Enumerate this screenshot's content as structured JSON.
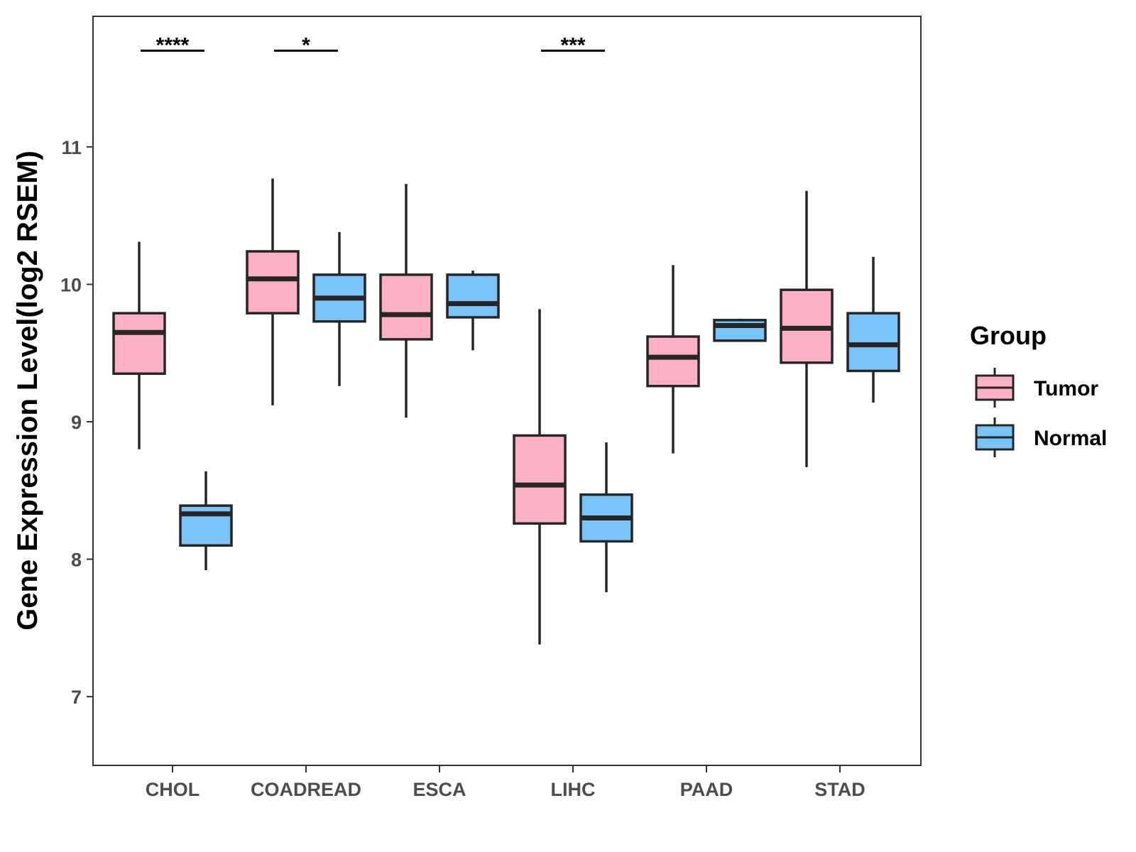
{
  "chart_data": {
    "type": "boxplot",
    "title": "",
    "xlabel": "",
    "ylabel": "Gene Expression Level(log2 RSEM)",
    "ylim": [
      6.5,
      11.95
    ],
    "yticks": [
      7,
      8,
      9,
      10,
      11
    ],
    "categories": [
      "CHOL",
      "COADREAD",
      "ESCA",
      "LIHC",
      "PAAD",
      "STAD"
    ],
    "legend": {
      "title": "Group",
      "position": "right",
      "entries": [
        "Tumor",
        "Normal"
      ]
    },
    "series": [
      {
        "name": "Tumor",
        "color": "#FBB1C3",
        "boxes": [
          {
            "min": 8.8,
            "q1": 9.35,
            "median": 9.65,
            "q3": 9.79,
            "max": 10.31
          },
          {
            "min": 9.12,
            "q1": 9.79,
            "median": 10.04,
            "q3": 10.24,
            "max": 10.77
          },
          {
            "min": 9.03,
            "q1": 9.6,
            "median": 9.78,
            "q3": 10.07,
            "max": 10.73
          },
          {
            "min": 7.38,
            "q1": 8.26,
            "median": 8.54,
            "q3": 8.9,
            "max": 9.82
          },
          {
            "min": 8.77,
            "q1": 9.26,
            "median": 9.47,
            "q3": 9.62,
            "max": 10.14
          },
          {
            "min": 8.67,
            "q1": 9.43,
            "median": 9.68,
            "q3": 9.96,
            "max": 10.68
          }
        ]
      },
      {
        "name": "Normal",
        "color": "#78C3F8",
        "boxes": [
          {
            "min": 7.92,
            "q1": 8.1,
            "median": 8.33,
            "q3": 8.39,
            "max": 8.64
          },
          {
            "min": 9.26,
            "q1": 9.73,
            "median": 9.9,
            "q3": 10.07,
            "max": 10.38
          },
          {
            "min": 9.52,
            "q1": 9.76,
            "median": 9.86,
            "q3": 10.07,
            "max": 10.1
          },
          {
            "min": 7.76,
            "q1": 8.13,
            "median": 8.3,
            "q3": 8.47,
            "max": 8.85
          },
          {
            "min": 9.59,
            "q1": 9.59,
            "median": 9.7,
            "q3": 9.74,
            "max": 9.75
          },
          {
            "min": 9.14,
            "q1": 9.37,
            "median": 9.56,
            "q3": 9.79,
            "max": 10.2
          }
        ]
      }
    ],
    "significance": [
      {
        "category": "CHOL",
        "label": "****"
      },
      {
        "category": "COADREAD",
        "label": "*"
      },
      {
        "category": "LIHC",
        "label": "***"
      }
    ],
    "sig_y": 11.7
  }
}
